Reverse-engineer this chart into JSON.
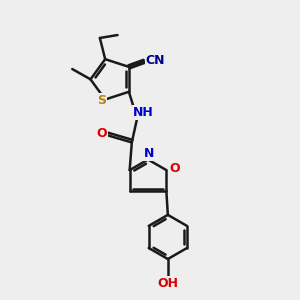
{
  "bg_color": "#eeeeee",
  "bond_color": "#1a1a1a",
  "bond_width": 1.8,
  "atom_colors": {
    "S": "#b8860b",
    "N": "#0000cc",
    "O": "#dd0000",
    "C": "#1a1a1a",
    "CN_label": "#00008b"
  },
  "figsize": [
    3.0,
    3.0
  ],
  "dpi": 100
}
